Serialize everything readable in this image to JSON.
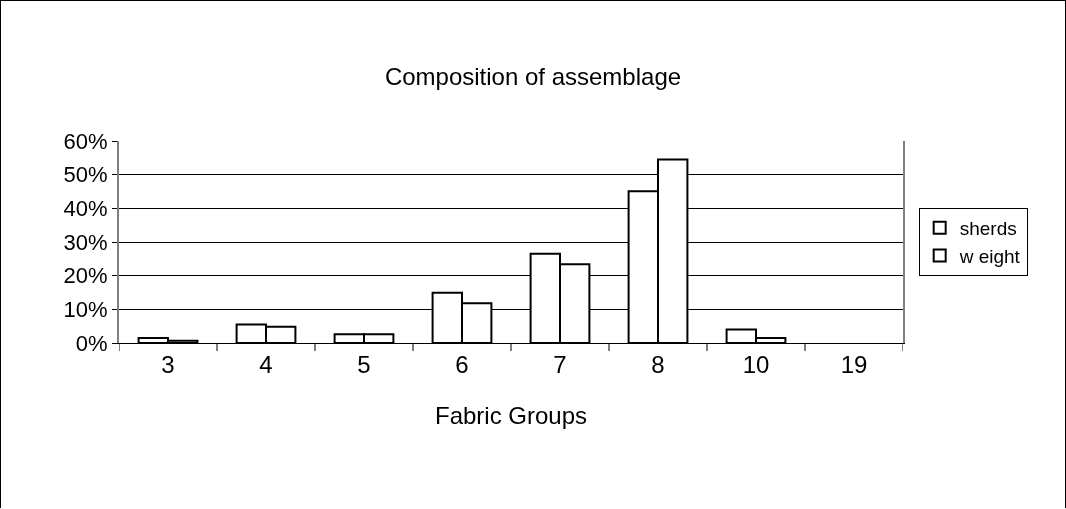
{
  "chart_data": {
    "type": "bar",
    "title": "Composition of assemblage",
    "xlabel": "Fabric Groups",
    "categories": [
      "3",
      "4",
      "5",
      "6",
      "7",
      "8",
      "10",
      "19"
    ],
    "series": [
      {
        "name": "sherds",
        "color": "#ffffff",
        "values": [
          1.5,
          5.5,
          2.6,
          14.9,
          26.5,
          45.1,
          4.0,
          0
        ]
      },
      {
        "name": "w eight",
        "color": "#ffffff",
        "values": [
          0.7,
          4.8,
          2.6,
          11.8,
          23.4,
          54.5,
          1.5,
          0
        ]
      }
    ],
    "ylim": [
      0,
      60
    ],
    "yticks": [
      {
        "value": 0,
        "label": "0%"
      },
      {
        "value": 10,
        "label": "10%"
      },
      {
        "value": 20,
        "label": "20%"
      },
      {
        "value": 30,
        "label": "30%"
      },
      {
        "value": 40,
        "label": "40%"
      },
      {
        "value": 50,
        "label": "50%"
      },
      {
        "value": 60,
        "label": "60%"
      }
    ],
    "grid": "y",
    "legend": "right"
  }
}
